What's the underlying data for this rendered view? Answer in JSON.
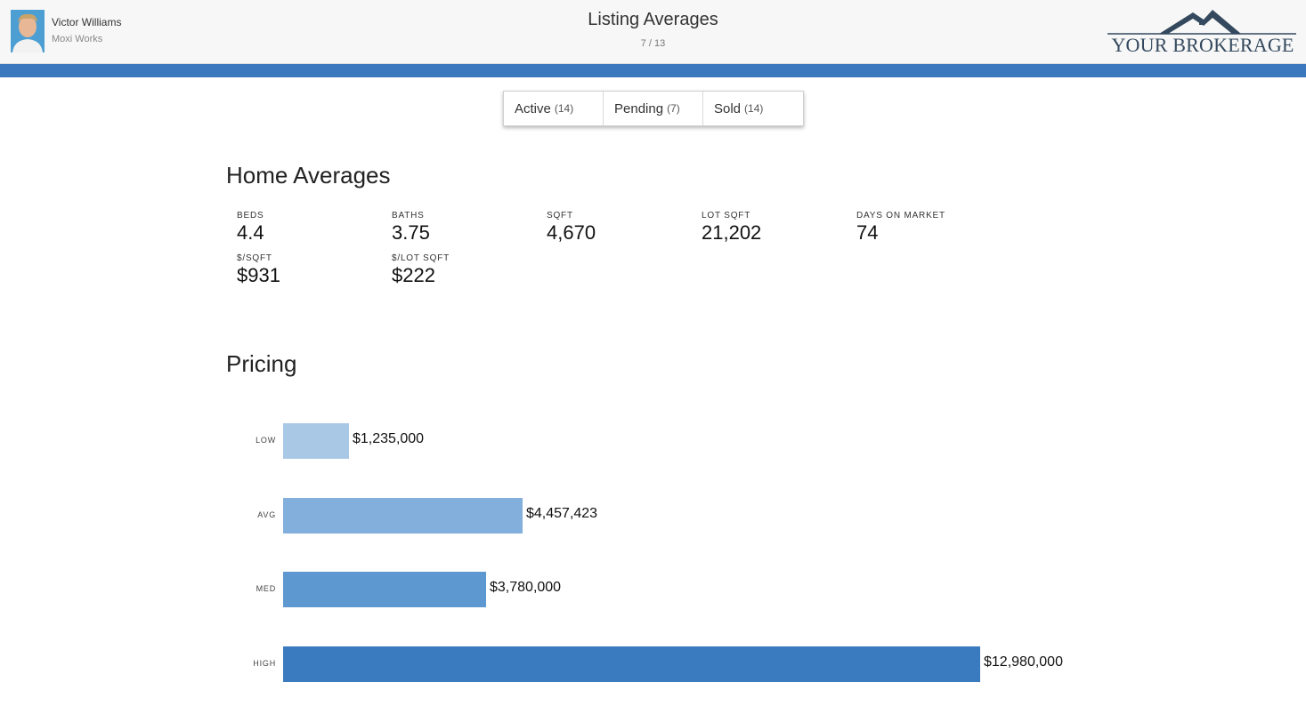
{
  "header": {
    "agent_name": "Victor Williams",
    "agent_company": "Moxi Works",
    "title": "Listing Averages",
    "counter": "7 / 13",
    "brand": "YOUR BROKERAGE"
  },
  "tabs": [
    {
      "label": "Active",
      "count": "(14)"
    },
    {
      "label": "Pending",
      "count": "(7)"
    },
    {
      "label": "Sold",
      "count": "(14)"
    }
  ],
  "home_averages": {
    "title": "Home Averages",
    "stats": [
      {
        "label": "BEDS",
        "value": "4.4"
      },
      {
        "label": "BATHS",
        "value": "3.75"
      },
      {
        "label": "SQFT",
        "value": "4,670"
      },
      {
        "label": "LOT SQFT",
        "value": "21,202"
      },
      {
        "label": "DAYS ON MARKET",
        "value": "74"
      },
      {
        "label": "$/SQFT",
        "value": "$931"
      },
      {
        "label": "$/LOT SQFT",
        "value": "$222"
      }
    ]
  },
  "pricing": {
    "title": "Pricing"
  },
  "chart_data": {
    "type": "bar",
    "orientation": "horizontal",
    "categories": [
      "LOW",
      "AVG",
      "MED",
      "HIGH"
    ],
    "values": [
      1235000,
      4457423,
      3780000,
      12980000
    ],
    "value_labels": [
      "$1,235,000",
      "$4,457,423",
      "$3,780,000",
      "$12,980,000"
    ],
    "colors": [
      "#a9c8e6",
      "#82afdb",
      "#5e98d0",
      "#3a7abf"
    ],
    "title": "",
    "xlabel": "",
    "ylabel": "",
    "grid": false
  },
  "colors": {
    "accent": "#3b78bd",
    "header_bg": "#f7f7f7"
  }
}
